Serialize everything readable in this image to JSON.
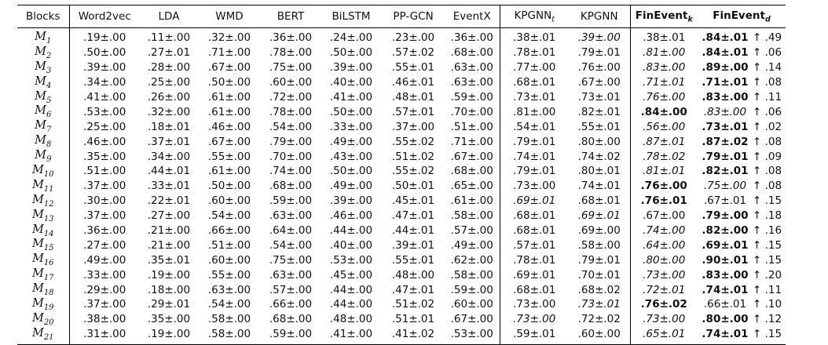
{
  "headers": {
    "blocks": "Blocks",
    "word2vec": "Word2vec",
    "lda": "LDA",
    "wmd": "WMD",
    "bert": "BERT",
    "bilstm": "BiLSTM",
    "ppgcn": "PP-GCN",
    "eventx": "EventX",
    "kpgnn_t": "KPGNN",
    "kpgnn_t_sub": "t",
    "kpgnn": "KPGNN",
    "finevent_k": "FinEvent",
    "finevent_k_sub": "k",
    "finevent_d": "FinEvent",
    "finevent_d_sub": "d"
  },
  "columns": [
    "word2vec",
    "lda",
    "wmd",
    "bert",
    "bilstm",
    "ppgcn",
    "eventx",
    "kpgnn_t",
    "kpgnn",
    "finevent_k",
    "finevent_d"
  ],
  "rows": [
    {
      "block": "M",
      "sub": "1",
      "vals": [
        ".19±.00",
        ".11±.00",
        ".32±.00",
        ".36±.00",
        ".24±.00",
        ".23±.00",
        ".36±.00",
        ".38±.01",
        ".39±.00",
        ".38±.01",
        ".84±.01"
      ],
      "gain": "↑ .49",
      "style": {
        "kpgnn": "it",
        "finevent_d": "b"
      }
    },
    {
      "block": "M",
      "sub": "2",
      "vals": [
        ".50±.00",
        ".27±.01",
        ".71±.00",
        ".78±.00",
        ".50±.00",
        ".57±.02",
        ".68±.00",
        ".78±.01",
        ".79±.01",
        ".81±.00",
        ".84±.01"
      ],
      "gain": "↑ .06",
      "style": {
        "finevent_k": "it",
        "finevent_d": "b"
      }
    },
    {
      "block": "M",
      "sub": "3",
      "vals": [
        ".39±.00",
        ".28±.00",
        ".67±.00",
        ".75±.00",
        ".39±.00",
        ".55±.01",
        ".63±.00",
        ".77±.00",
        ".76±.00",
        ".83±.00",
        ".89±.00"
      ],
      "gain": "↑ .14",
      "style": {
        "finevent_k": "it",
        "finevent_d": "b"
      }
    },
    {
      "block": "M",
      "sub": "4",
      "vals": [
        ".34±.00",
        ".25±.00",
        ".50±.00",
        ".60±.00",
        ".40±.00",
        ".46±.01",
        ".63±.00",
        ".68±.01",
        ".67±.00",
        ".71±.01",
        ".71±.01"
      ],
      "gain": "↑ .08",
      "style": {
        "finevent_k": "it",
        "finevent_d": "b"
      }
    },
    {
      "block": "M",
      "sub": "5",
      "vals": [
        ".41±.00",
        ".26±.00",
        ".61±.00",
        ".72±.00",
        ".41±.00",
        ".48±.01",
        ".59±.00",
        ".73±.01",
        ".73±.01",
        ".76±.00",
        ".83±.00"
      ],
      "gain": "↑ .11",
      "style": {
        "finevent_k": "it",
        "finevent_d": "b"
      }
    },
    {
      "block": "M",
      "sub": "6",
      "vals": [
        ".53±.00",
        ".32±.00",
        ".61±.00",
        ".78±.00",
        ".50±.00",
        ".57±.01",
        ".70±.00",
        ".81±.00",
        ".82±.01",
        ".84±.00",
        ".83±.00"
      ],
      "gain": "↑ .06",
      "style": {
        "finevent_k": "b",
        "finevent_d": "it"
      }
    },
    {
      "block": "M",
      "sub": "7",
      "vals": [
        ".25±.00",
        ".18±.01",
        ".46±.00",
        ".54±.00",
        ".33±.00",
        ".37±.00",
        ".51±.00",
        ".54±.01",
        ".55±.01",
        ".56±.00",
        ".73±.01"
      ],
      "gain": "↑ .02",
      "style": {
        "finevent_k": "it",
        "finevent_d": "b"
      }
    },
    {
      "block": "M",
      "sub": "8",
      "vals": [
        ".46±.00",
        ".37±.01",
        ".67±.00",
        ".79±.00",
        ".49±.00",
        ".55±.02",
        ".71±.00",
        ".79±.01",
        ".80±.00",
        ".87±.01",
        ".87±.02"
      ],
      "gain": "↑ .08",
      "style": {
        "finevent_k": "it",
        "finevent_d": "b"
      }
    },
    {
      "block": "M",
      "sub": "9",
      "vals": [
        ".35±.00",
        ".34±.00",
        ".55±.00",
        ".70±.00",
        ".43±.00",
        ".51±.02",
        ".67±.00",
        ".74±.01",
        ".74±.02",
        ".78±.02",
        ".79±.01"
      ],
      "gain": "↑ .09",
      "style": {
        "finevent_k": "it",
        "finevent_d": "b"
      }
    },
    {
      "block": "M",
      "sub": "10",
      "vals": [
        ".51±.00",
        ".44±.01",
        ".61±.00",
        ".74±.00",
        ".50±.00",
        ".55±.02",
        ".68±.00",
        ".79±.01",
        ".80±.01",
        ".81±.01",
        ".82±.01"
      ],
      "gain": "↑ .08",
      "style": {
        "finevent_k": "it",
        "finevent_d": "b"
      }
    },
    {
      "block": "M",
      "sub": "11",
      "vals": [
        ".37±.00",
        ".33±.01",
        ".50±.00",
        ".68±.00",
        ".49±.00",
        ".50±.01",
        ".65±.00",
        ".73±.00",
        ".74±.01",
        ".76±.00",
        ".75±.00"
      ],
      "gain": "↑ .08",
      "style": {
        "finevent_k": "b",
        "finevent_d": "it"
      }
    },
    {
      "block": "M",
      "sub": "12",
      "vals": [
        ".30±.00",
        ".22±.01",
        ".60±.00",
        ".59±.00",
        ".39±.00",
        ".45±.01",
        ".61±.00",
        ".69±.01",
        ".68±.01",
        ".76±.01",
        ".67±.01"
      ],
      "gain": "↑ .15",
      "style": {
        "kpgnn_t": "it",
        "finevent_k": "b"
      }
    },
    {
      "block": "M",
      "sub": "13",
      "vals": [
        ".37±.00",
        ".27±.00",
        ".54±.00",
        ".63±.00",
        ".46±.00",
        ".47±.01",
        ".58±.00",
        ".68±.01",
        ".69±.01",
        ".67±.00",
        ".79±.00"
      ],
      "gain": "↑ .18",
      "style": {
        "kpgnn": "it",
        "finevent_d": "b"
      }
    },
    {
      "block": "M",
      "sub": "14",
      "vals": [
        ".36±.00",
        ".21±.00",
        ".66±.00",
        ".64±.00",
        ".44±.00",
        ".44±.01",
        ".57±.00",
        ".68±.01",
        ".69±.00",
        ".74±.00",
        ".82±.00"
      ],
      "gain": "↑ .16",
      "style": {
        "finevent_k": "it",
        "finevent_d": "b"
      }
    },
    {
      "block": "M",
      "sub": "15",
      "vals": [
        ".27±.00",
        ".21±.00",
        ".51±.00",
        ".54±.00",
        ".40±.00",
        ".39±.01",
        ".49±.00",
        ".57±.01",
        ".58±.00",
        ".64±.00",
        ".69±.01"
      ],
      "gain": "↑ .15",
      "style": {
        "finevent_k": "it",
        "finevent_d": "b"
      }
    },
    {
      "block": "M",
      "sub": "16",
      "vals": [
        ".49±.00",
        ".35±.01",
        ".60±.00",
        ".75±.00",
        ".53±.00",
        ".55±.01",
        ".62±.00",
        ".78±.01",
        ".79±.01",
        ".80±.00",
        ".90±.01"
      ],
      "gain": "↑ .15",
      "style": {
        "finevent_k": "it",
        "finevent_d": "b"
      }
    },
    {
      "block": "M",
      "sub": "17",
      "vals": [
        ".33±.00",
        ".19±.00",
        ".55±.00",
        ".63±.00",
        ".45±.00",
        ".48±.00",
        ".58±.00",
        ".69±.01",
        ".70±.01",
        ".73±.00",
        ".83±.00"
      ],
      "gain": "↑ .20",
      "style": {
        "finevent_k": "it",
        "finevent_d": "b"
      }
    },
    {
      "block": "M",
      "sub": "18",
      "vals": [
        ".29±.00",
        ".18±.00",
        ".63±.00",
        ".57±.00",
        ".44±.00",
        ".47±.01",
        ".59±.00",
        ".68±.01",
        ".68±.02",
        ".72±.01",
        ".74±.01"
      ],
      "gain": "↑ .11",
      "style": {
        "finevent_k": "it",
        "finevent_d": "b"
      }
    },
    {
      "block": "M",
      "sub": "19",
      "vals": [
        ".37±.00",
        ".29±.01",
        ".54±.00",
        ".66±.00",
        ".44±.00",
        ".51±.02",
        ".60±.00",
        ".73±.00",
        ".73±.01",
        ".76±.02",
        ".66±.01"
      ],
      "gain": "↑ .10",
      "style": {
        "kpgnn": "it",
        "finevent_k": "b"
      }
    },
    {
      "block": "M",
      "sub": "20",
      "vals": [
        ".38±.00",
        ".35±.00",
        ".58±.00",
        ".68±.00",
        ".48±.00",
        ".51±.01",
        ".67±.00",
        ".73±.00",
        ".72±.02",
        ".73±.00",
        ".80±.00"
      ],
      "gain": "↑ .12",
      "style": {
        "kpgnn_t": "it",
        "finevent_k": "it",
        "finevent_d": "b"
      }
    },
    {
      "block": "M",
      "sub": "21",
      "vals": [
        ".31±.00",
        ".19±.00",
        ".58±.00",
        ".59±.00",
        ".41±.00",
        ".41±.02",
        ".53±.00",
        ".59±.01",
        ".60±.00",
        ".65±.01",
        ".74±.01"
      ],
      "gain": "↑ .15",
      "style": {
        "finevent_k": "it",
        "finevent_d": "b"
      }
    }
  ]
}
